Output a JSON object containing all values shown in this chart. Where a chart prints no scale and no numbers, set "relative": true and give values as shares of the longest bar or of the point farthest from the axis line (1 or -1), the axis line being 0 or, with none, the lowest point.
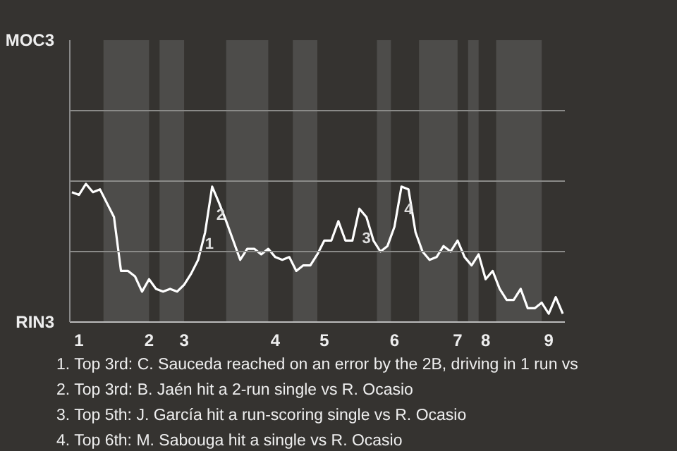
{
  "chart_data": {
    "type": "line",
    "relative": true,
    "categories": [
      null,
      "1",
      null,
      null,
      null,
      null,
      null,
      null,
      null,
      null,
      null,
      "2",
      null,
      null,
      null,
      null,
      "3",
      null,
      null,
      null,
      null,
      null,
      null,
      null,
      null,
      null,
      null,
      null,
      null,
      "4",
      null,
      null,
      null,
      null,
      null,
      null,
      "5",
      null,
      null,
      null,
      null,
      null,
      null,
      null,
      null,
      null,
      "6",
      null,
      null,
      null,
      null,
      null,
      null,
      null,
      null,
      "7",
      null,
      null,
      null,
      "8",
      null,
      null,
      null,
      null,
      null,
      null,
      null,
      null,
      "9",
      null,
      null
    ],
    "series": [
      {
        "color": "#ffffff",
        "values": [
          0.94,
          0.92,
          1,
          0.94,
          0.96,
          0.86,
          0.76,
          0.37,
          0.37,
          0.33,
          0.22,
          0.31,
          0.24,
          0.22,
          0.24,
          0.22,
          0.27,
          0.35,
          0.45,
          0.65,
          0.98,
          0.86,
          0.73,
          0.59,
          0.45,
          0.53,
          0.53,
          0.49,
          0.53,
          0.47,
          0.45,
          0.47,
          0.37,
          0.41,
          0.41,
          0.49,
          0.59,
          0.59,
          0.73,
          0.59,
          0.59,
          0.82,
          0.76,
          0.59,
          0.51,
          0.55,
          0.69,
          0.98,
          0.96,
          0.65,
          0.51,
          0.45,
          0.47,
          0.55,
          0.51,
          0.59,
          0.47,
          0.41,
          0.49,
          0.31,
          0.37,
          0.24,
          0.16,
          0.16,
          0.24,
          0.1,
          0.1,
          0.14,
          0.06,
          0.18,
          0.06
        ]
      }
    ],
    "ref_lines": [
      {
        "axis": "y",
        "value": 0.51,
        "color": "#8a8a88"
      }
    ],
    "marker": "none",
    "line_style": "solid",
    "annotations": [
      "MOC3",
      "RIN3",
      {
        "text": "1",
        "y": 0.57
      },
      {
        "text": "2",
        "y": 0.78
      },
      {
        "text": "3",
        "y": 0.61
      },
      {
        "text": "4",
        "y": 0.82
      },
      "1. Top 3rd: C. Sauceda reached on an error by the 2B, driving in 1 run vs",
      "2. Top 3rd: B. Jaén hit a 2-run single vs R. Ocasio",
      "3. Top 5th: J. García hit a run-scoring single vs R. Ocasio",
      "4. Top 6th: M. Sabouga hit a single vs R. Ocasio"
    ]
  }
}
